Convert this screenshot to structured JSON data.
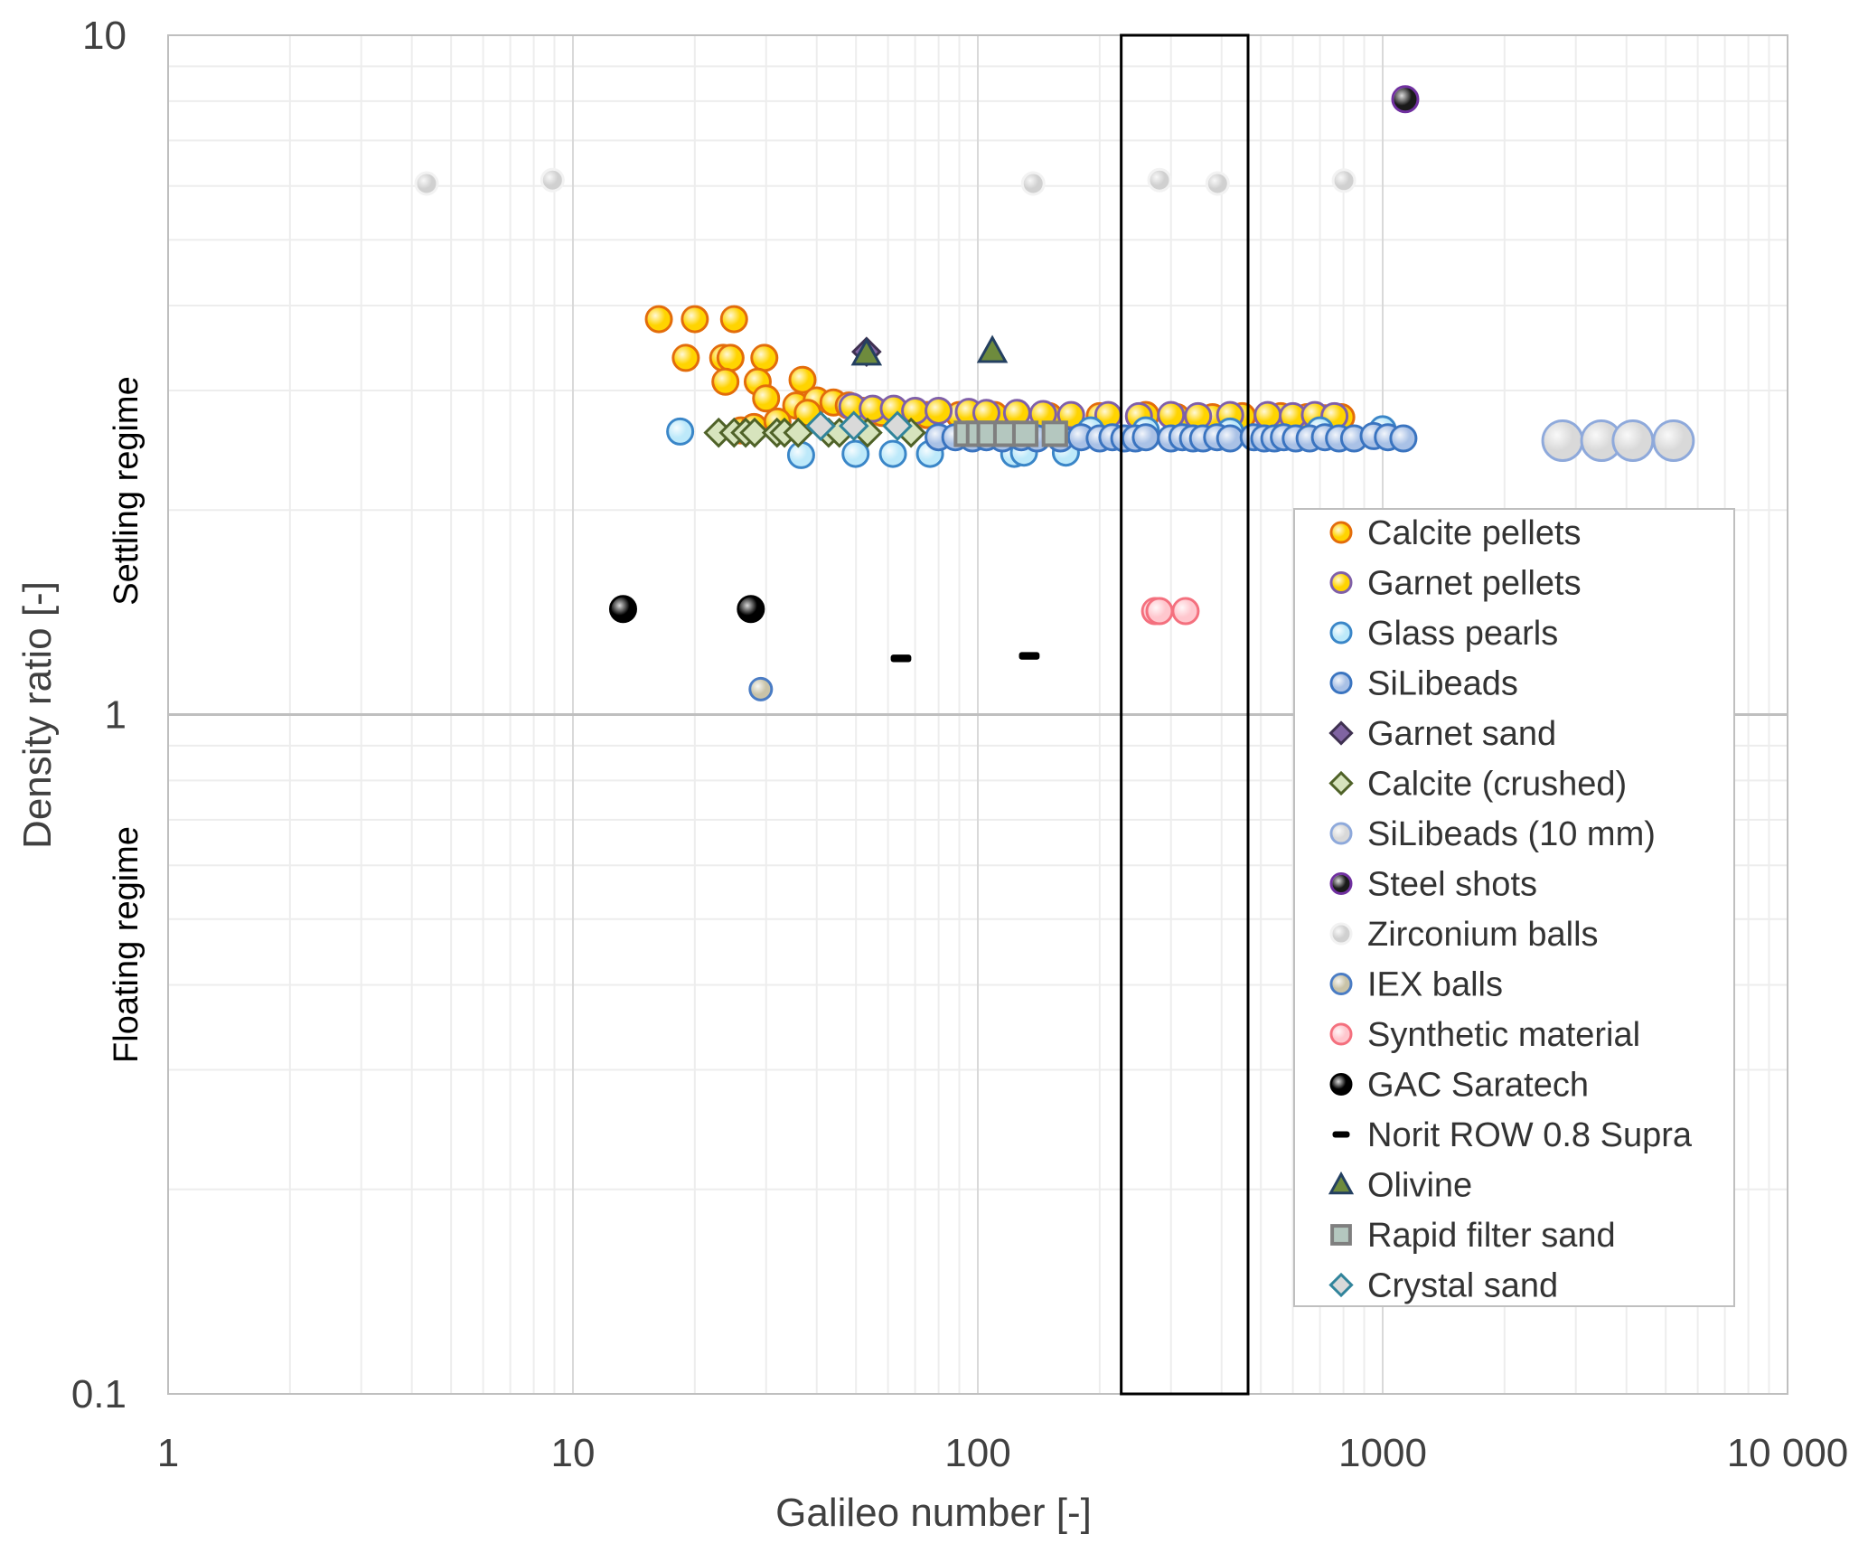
{
  "chart_data": {
    "type": "scatter",
    "title": "",
    "xlabel": "Galileo number [-]",
    "ylabel": "Density ratio [-]",
    "xscale": "log",
    "yscale": "log",
    "xlim": [
      1,
      10000
    ],
    "ylim": [
      0.1,
      10
    ],
    "xticks": [
      1,
      10,
      100,
      1000,
      10000
    ],
    "xtick_labels": [
      "1",
      "10",
      "100",
      "1000",
      "10 000"
    ],
    "yticks": [
      0.1,
      1,
      10
    ],
    "ytick_labels": [
      "0.1",
      "1",
      "10"
    ],
    "grid": true,
    "regime_labels": {
      "above": "Settling regime",
      "below": "Floating regime"
    },
    "reference_line": {
      "y": 1
    },
    "highlight_box": {
      "x_range": [
        226,
        465
      ],
      "y_range": [
        0.1,
        10
      ]
    },
    "legend_position": "bottom-right",
    "series": [
      {
        "name": "Calcite pellets",
        "marker": "circle",
        "fill": "#FFD400",
        "stroke": "#E36C0A",
        "points": [
          [
            16.3,
            3.82
          ],
          [
            20.0,
            3.82
          ],
          [
            25.0,
            3.82
          ],
          [
            19.0,
            3.35
          ],
          [
            23.5,
            3.35
          ],
          [
            24.5,
            3.35
          ],
          [
            29.7,
            3.35
          ],
          [
            23.8,
            3.09
          ],
          [
            28.6,
            3.09
          ],
          [
            36.9,
            3.11
          ],
          [
            30.0,
            2.92
          ],
          [
            35.6,
            2.85
          ],
          [
            40,
            2.9
          ],
          [
            44,
            2.88
          ],
          [
            48,
            2.85
          ],
          [
            52,
            2.8
          ],
          [
            26,
            2.62
          ],
          [
            28,
            2.65
          ],
          [
            32,
            2.7
          ],
          [
            38,
            2.78
          ],
          [
            58,
            2.78
          ],
          [
            65,
            2.77
          ],
          [
            75,
            2.76
          ],
          [
            90,
            2.76
          ],
          [
            110,
            2.76
          ],
          [
            150,
            2.75
          ],
          [
            200,
            2.75
          ],
          [
            260,
            2.76
          ],
          [
            310,
            2.74
          ],
          [
            380,
            2.74
          ],
          [
            450,
            2.75
          ],
          [
            560,
            2.75
          ],
          [
            650,
            2.74
          ],
          [
            720,
            2.73
          ],
          [
            790,
            2.74
          ]
        ]
      },
      {
        "name": "Garnet pellets",
        "marker": "circle",
        "fill": "#FFD400",
        "stroke": "#7F5FA8",
        "points": [
          [
            49,
            2.84
          ],
          [
            55,
            2.82
          ],
          [
            62,
            2.82
          ],
          [
            70,
            2.8
          ],
          [
            80,
            2.8
          ],
          [
            95,
            2.79
          ],
          [
            105,
            2.78
          ],
          [
            125,
            2.78
          ],
          [
            145,
            2.77
          ],
          [
            170,
            2.76
          ],
          [
            210,
            2.76
          ],
          [
            250,
            2.75
          ],
          [
            300,
            2.76
          ],
          [
            350,
            2.75
          ],
          [
            420,
            2.76
          ],
          [
            520,
            2.76
          ],
          [
            600,
            2.75
          ],
          [
            680,
            2.76
          ],
          [
            760,
            2.75
          ]
        ]
      },
      {
        "name": "Glass pearls",
        "marker": "circle",
        "fill": "#BDE9FA",
        "stroke": "#3A86C8",
        "points": [
          [
            18.4,
            2.61
          ],
          [
            36.6,
            2.41
          ],
          [
            49.9,
            2.42
          ],
          [
            61.7,
            2.42
          ],
          [
            76.2,
            2.42
          ],
          [
            123,
            2.42
          ],
          [
            130,
            2.43
          ],
          [
            165,
            2.43
          ],
          [
            190,
            2.62
          ],
          [
            260,
            2.62
          ],
          [
            420,
            2.61
          ],
          [
            700,
            2.62
          ],
          [
            1000,
            2.63
          ]
        ]
      },
      {
        "name": "SiLibeads",
        "marker": "circle",
        "fill": "#A9C1E6",
        "stroke": "#3A74C0",
        "points": [
          [
            80,
            2.56
          ],
          [
            88,
            2.56
          ],
          [
            97,
            2.55
          ],
          [
            105,
            2.56
          ],
          [
            115,
            2.55
          ],
          [
            128,
            2.56
          ],
          [
            140,
            2.55
          ],
          [
            160,
            2.55
          ],
          [
            180,
            2.56
          ],
          [
            200,
            2.55
          ],
          [
            215,
            2.56
          ],
          [
            230,
            2.55
          ],
          [
            245,
            2.55
          ],
          [
            260,
            2.56
          ],
          [
            300,
            2.55
          ],
          [
            320,
            2.56
          ],
          [
            340,
            2.55
          ],
          [
            360,
            2.55
          ],
          [
            390,
            2.56
          ],
          [
            420,
            2.55
          ],
          [
            480,
            2.56
          ],
          [
            510,
            2.55
          ],
          [
            540,
            2.55
          ],
          [
            570,
            2.56
          ],
          [
            610,
            2.55
          ],
          [
            660,
            2.55
          ],
          [
            720,
            2.56
          ],
          [
            780,
            2.55
          ],
          [
            850,
            2.55
          ],
          [
            950,
            2.57
          ],
          [
            1030,
            2.56
          ],
          [
            1125,
            2.55
          ]
        ]
      },
      {
        "name": "Garnet sand",
        "marker": "diamond",
        "fill": "#8064A2",
        "stroke": "#3F3151",
        "points": [
          [
            53.1,
            3.42
          ]
        ]
      },
      {
        "name": "Calcite (crushed)",
        "marker": "diamond",
        "fill": "#D7E4BD",
        "stroke": "#4F6228",
        "points": [
          [
            22.9,
            2.6
          ],
          [
            25.0,
            2.6
          ],
          [
            26.7,
            2.6
          ],
          [
            28.1,
            2.6
          ],
          [
            31.9,
            2.6
          ],
          [
            33.3,
            2.6
          ],
          [
            36.0,
            2.6
          ],
          [
            42.8,
            2.6
          ],
          [
            45.5,
            2.6
          ],
          [
            53.4,
            2.6
          ],
          [
            68.4,
            2.6
          ]
        ]
      },
      {
        "name": "SiLibeads (10 mm)",
        "marker": "circle",
        "fill": "#D9D9D9",
        "stroke": "#8EA9DB",
        "points": [
          [
            2782,
            2.53
          ],
          [
            3470,
            2.53
          ],
          [
            4150,
            2.53
          ],
          [
            5230,
            2.53
          ]
        ]
      },
      {
        "name": "Steel shots",
        "marker": "circle",
        "fill": "#1A1A1A",
        "stroke": "#7030A0",
        "points": [
          [
            1137,
            8.05
          ]
        ]
      },
      {
        "name": "Zirconium balls",
        "marker": "circle",
        "fill": "#D0D0D0",
        "stroke": "#F2F2F2",
        "points": [
          [
            4.35,
            6.05
          ],
          [
            8.9,
            6.12
          ],
          [
            137,
            6.05
          ],
          [
            281,
            6.12
          ],
          [
            391,
            6.05
          ],
          [
            802,
            6.11
          ]
        ]
      },
      {
        "name": "IEX balls",
        "marker": "circle",
        "fill": "#C9C3A8",
        "stroke": "#4A7CC4",
        "points": [
          [
            29.1,
            1.09
          ]
        ]
      },
      {
        "name": "Synthetic material",
        "marker": "circle",
        "fill": "#FFC7CE",
        "stroke": "#F4707E",
        "points": [
          [
            274,
            1.42
          ],
          [
            281,
            1.42
          ],
          [
            326,
            1.42
          ]
        ]
      },
      {
        "name": "GAC Saratech",
        "marker": "circle",
        "fill": "#000000",
        "stroke": "#000000",
        "points": [
          [
            13.3,
            1.43
          ],
          [
            27.5,
            1.43
          ]
        ]
      },
      {
        "name": "Norit ROW 0.8 Supra",
        "marker": "dash",
        "fill": "#000000",
        "stroke": "#000000",
        "points": [
          [
            64.6,
            1.21
          ],
          [
            134,
            1.22
          ]
        ]
      },
      {
        "name": "Olivine",
        "marker": "triangle",
        "fill": "#6E8B3D",
        "stroke": "#244061",
        "points": [
          [
            53.1,
            3.4
          ],
          [
            108.6,
            3.43
          ]
        ]
      },
      {
        "name": "Rapid filter sand",
        "marker": "square",
        "fill": "#B4C7BF",
        "stroke": "#7F7F7F",
        "points": [
          [
            94,
            2.59
          ],
          [
            100.7,
            2.59
          ],
          [
            107,
            2.59
          ],
          [
            117.6,
            2.59
          ],
          [
            131,
            2.59
          ],
          [
            155,
            2.59
          ]
        ]
      },
      {
        "name": "Crystal sand",
        "marker": "diamond",
        "fill": "#D9D9D9",
        "stroke": "#31849B",
        "points": [
          [
            40.9,
            2.66
          ],
          [
            49.4,
            2.66
          ],
          [
            63.3,
            2.66
          ]
        ]
      }
    ]
  }
}
